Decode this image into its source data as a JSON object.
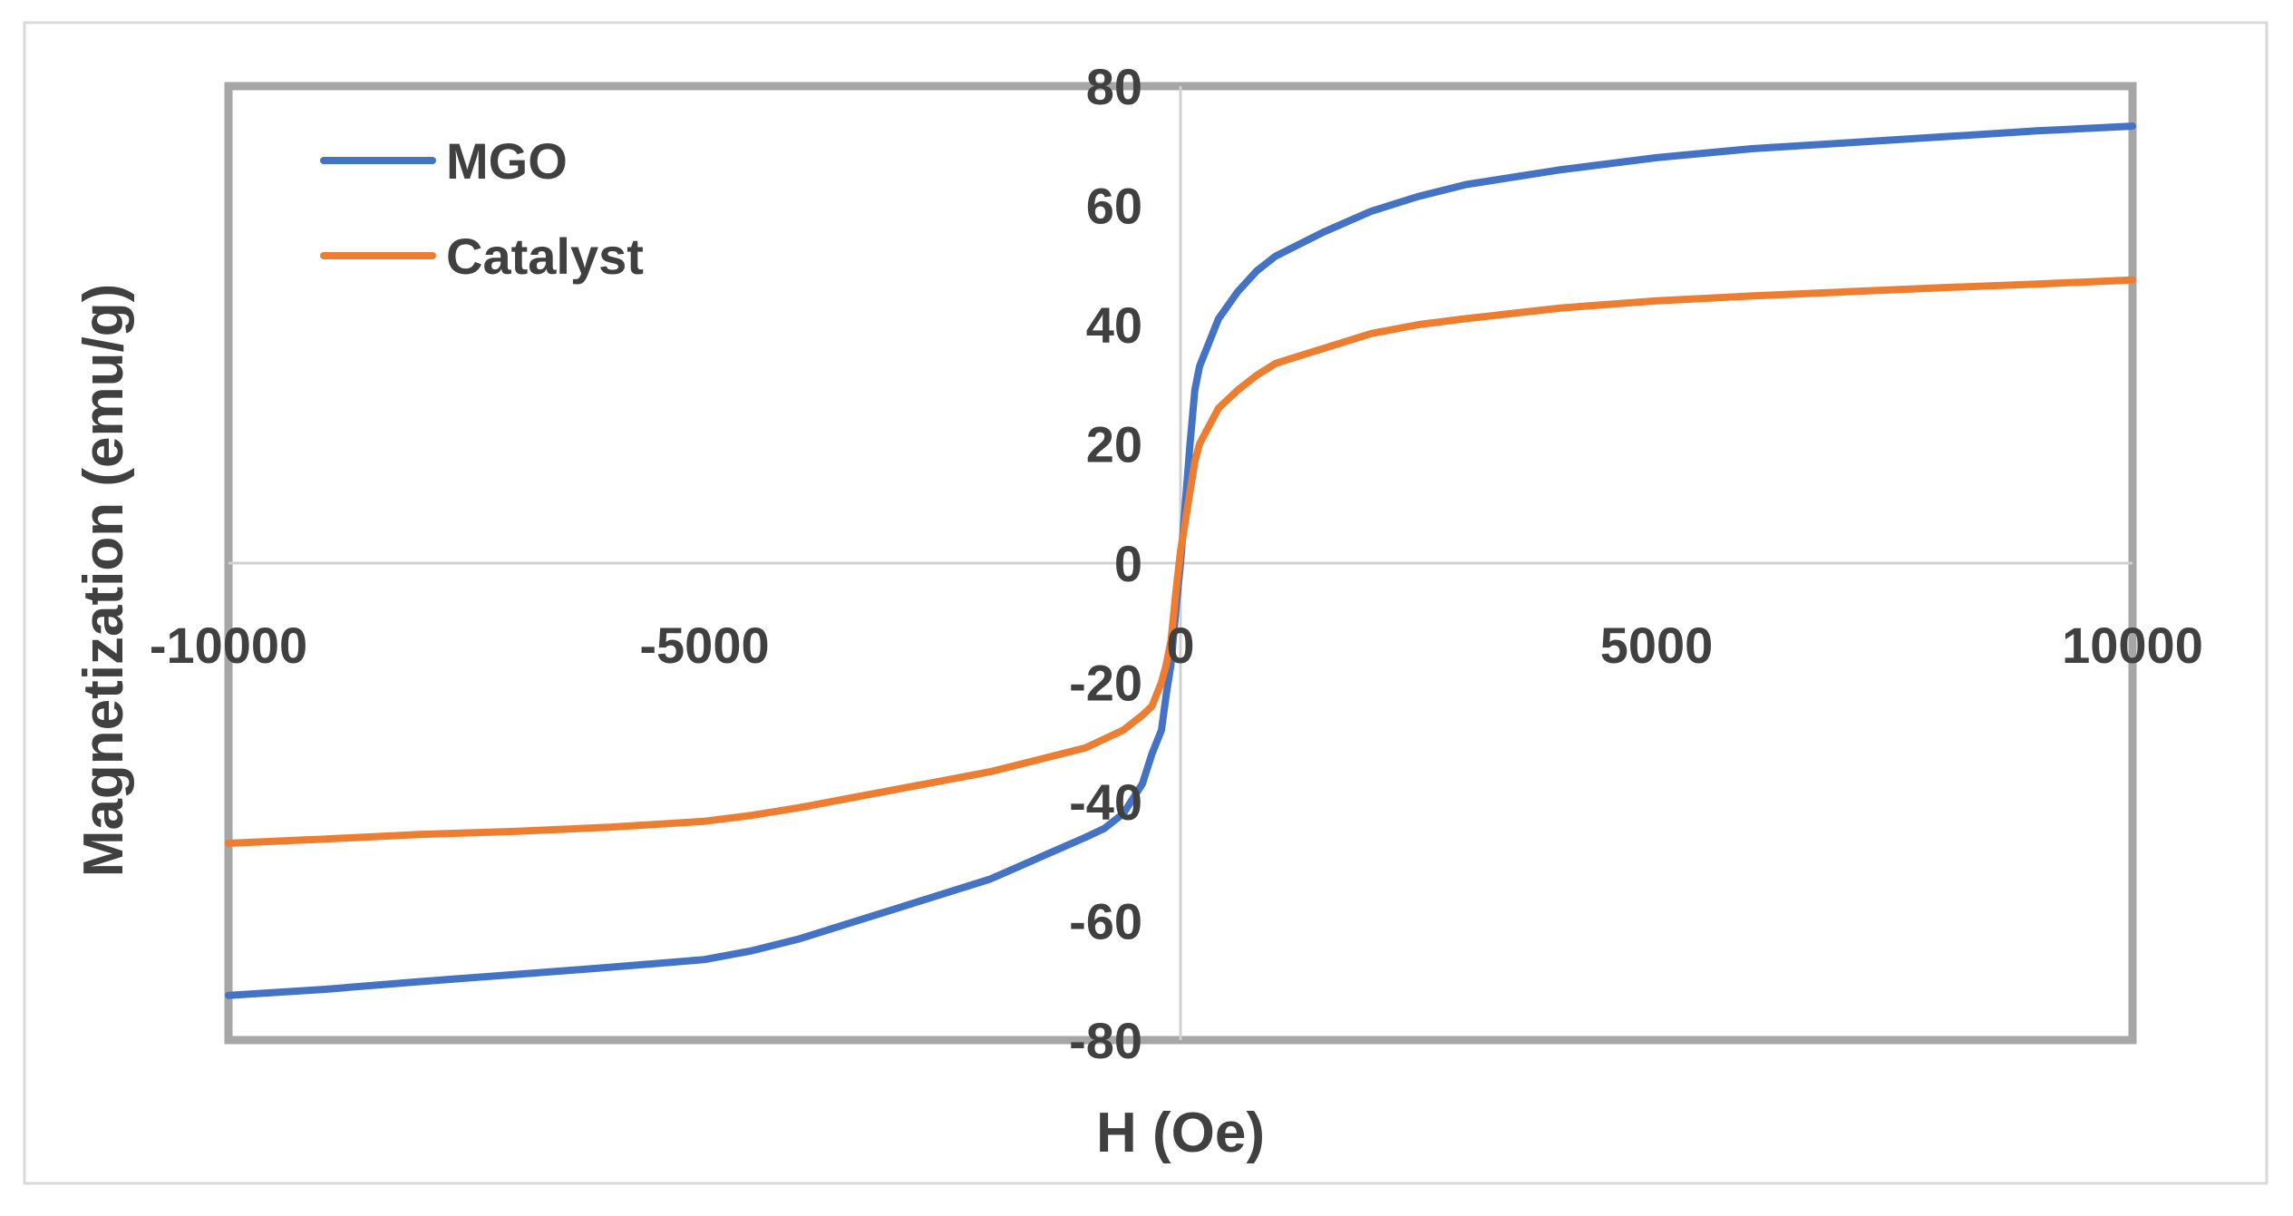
{
  "chart_data": {
    "type": "line",
    "title": "",
    "xlabel": "H (Oe)",
    "ylabel": "Magnetization (emu/g)",
    "xlim": [
      -10000,
      10000
    ],
    "ylim": [
      -80,
      80
    ],
    "xticks": [
      -10000,
      -5000,
      0,
      5000,
      10000
    ],
    "yticks": [
      -80,
      -60,
      -40,
      -20,
      0,
      20,
      40,
      60,
      80
    ],
    "xtick_labels": [
      "-10000",
      "-5000",
      "0",
      "5000",
      "10000"
    ],
    "ytick_labels": [
      "-80",
      "-60",
      "-40",
      "-20",
      "0",
      "20",
      "40",
      "60",
      "80"
    ],
    "grid": false,
    "legend_position": "top-left",
    "series": [
      {
        "name": "MGO",
        "color": "#4472C4",
        "x": [
          -10000,
          -9000,
          -8000,
          -7000,
          -6000,
          -5000,
          -4500,
          -4000,
          -3500,
          -3000,
          -2500,
          -2000,
          -1500,
          -1000,
          -800,
          -600,
          -400,
          -300,
          -200,
          -150,
          -100,
          -50,
          0,
          50,
          100,
          150,
          200,
          300,
          400,
          600,
          800,
          1000,
          1500,
          2000,
          2500,
          3000,
          4000,
          5000,
          6000,
          7000,
          8000,
          9000,
          10000
        ],
        "y": [
          -72.5,
          -71.5,
          -70.2,
          -69,
          -67.8,
          -66.5,
          -65,
          -63,
          -60.5,
          -58,
          -55.5,
          -53,
          -49.5,
          -46,
          -44.5,
          -42,
          -37,
          -32,
          -28,
          -22,
          -17,
          -8,
          0,
          10,
          20,
          29,
          33,
          37,
          41,
          45.5,
          49,
          51.5,
          55.5,
          59,
          61.5,
          63.5,
          66,
          68,
          69.5,
          70.5,
          71.5,
          72.5,
          73.3
        ]
      },
      {
        "name": "Catalyst",
        "color": "#ED7D31",
        "x": [
          -10000,
          -9000,
          -8000,
          -7000,
          -6000,
          -5000,
          -4500,
          -4000,
          -3500,
          -3000,
          -2500,
          -2000,
          -1500,
          -1000,
          -800,
          -600,
          -400,
          -300,
          -200,
          -150,
          -100,
          -50,
          0,
          50,
          100,
          150,
          200,
          300,
          400,
          600,
          800,
          1000,
          1500,
          2000,
          2500,
          3000,
          4000,
          5000,
          6000,
          7000,
          8000,
          9000,
          10000
        ],
        "y": [
          -47,
          -46.3,
          -45.5,
          -45,
          -44.3,
          -43.3,
          -42.3,
          -41,
          -39.5,
          -38,
          -36.5,
          -35,
          -33,
          -31,
          -29.5,
          -28,
          -25.5,
          -24,
          -20,
          -17,
          -13,
          -5,
          2,
          7,
          12,
          17,
          20,
          23,
          26,
          29,
          31.5,
          33.5,
          36,
          38.5,
          40,
          41,
          42.8,
          44,
          44.8,
          45.5,
          46.2,
          46.8,
          47.5
        ]
      }
    ]
  }
}
